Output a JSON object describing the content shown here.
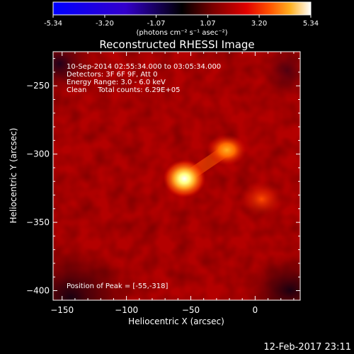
{
  "colorbar": {
    "tick_labels": [
      "-5.34",
      "-3.20",
      "-1.07",
      "1.07",
      "3.20",
      "5.34"
    ],
    "ticks": [
      -5.34,
      -3.2,
      -1.07,
      1.07,
      3.2,
      5.34
    ],
    "range": [
      -5.34,
      5.34
    ],
    "unit_label": "(photons cm⁻² s⁻¹ asec⁻²)",
    "colors": [
      "#0000ff",
      "#3300ff",
      "#000000",
      "#7a0000",
      "#e00000",
      "#ff4a00",
      "#ffaa20",
      "#ffff60",
      "#ffffff"
    ]
  },
  "chart_data": {
    "type": "heatmap",
    "title": "Reconstructed RHESSI Image",
    "xlabel": "Heliocentric X (arcsec)",
    "ylabel": "Heliocentric Y (arcsec)",
    "xlim": [
      -157,
      35
    ],
    "ylim": [
      -407,
      -225
    ],
    "xticks": [
      -150,
      -100,
      -50,
      0
    ],
    "xtick_labels": [
      "−150",
      "−100",
      "−50",
      "0"
    ],
    "yticks": [
      -250,
      -300,
      -350,
      -400
    ],
    "ytick_labels": [
      "−250",
      "−300",
      "−350",
      "−400"
    ],
    "annotations": [
      "10-Sep-2014 02:55:34.000 to 03:05:34.000",
      "Detectors: 3F 6F 9F, Att 0",
      "Energy Range: 3.0 - 6.0 keV",
      "Clean     Total counts: 6.29E+05"
    ],
    "peak_label": "Position of Peak = [-55,-318]",
    "peak": [
      -55,
      -318
    ],
    "sources": [
      {
        "x": -55,
        "y": -318,
        "value": 5.34
      },
      {
        "x": -22,
        "y": -297,
        "value": 3.4
      },
      {
        "x": 5,
        "y": -333,
        "value": 2.0
      }
    ]
  },
  "footer": {
    "date": "12-Feb-2017 23:11"
  }
}
